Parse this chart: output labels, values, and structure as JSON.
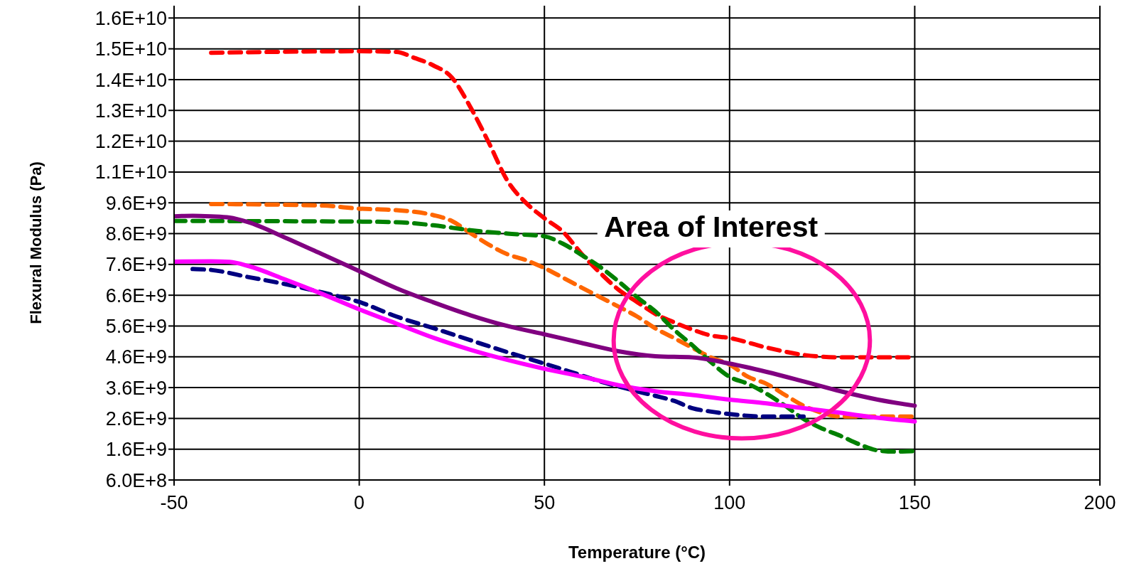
{
  "chart_data": {
    "type": "line",
    "xlabel": "Temperature (°C)",
    "ylabel": "Flexural Modulus (Pa)",
    "annotations": [
      "Area of Interest"
    ],
    "xlim": [
      -50,
      200
    ],
    "xticks": [
      -50,
      0,
      50,
      100,
      150,
      200
    ],
    "ylim": [
      600000000,
      16000000000
    ],
    "yticks": [
      {
        "value": 600000000,
        "label": "6.0E+8"
      },
      {
        "value": 1600000000,
        "label": "1.6E+9"
      },
      {
        "value": 2600000000,
        "label": "2.6E+9"
      },
      {
        "value": 3600000000,
        "label": "3.6E+9"
      },
      {
        "value": 4600000000,
        "label": "4.6E+9"
      },
      {
        "value": 5600000000,
        "label": "5.6E+9"
      },
      {
        "value": 6600000000,
        "label": "6.6E+9"
      },
      {
        "value": 7600000000,
        "label": "7.6E+9"
      },
      {
        "value": 8600000000,
        "label": "8.6E+9"
      },
      {
        "value": 9600000000,
        "label": "9.6E+9"
      },
      {
        "value": 10600000000,
        "label": "1.1E+10"
      },
      {
        "value": 11600000000,
        "label": "1.2E+10"
      },
      {
        "value": 12600000000,
        "label": "1.3E+10"
      },
      {
        "value": 13600000000,
        "label": "1.4E+10"
      },
      {
        "value": 14600000000,
        "label": "1.5E+10"
      },
      {
        "value": 15600000000,
        "label": "1.6E+10"
      }
    ],
    "grid": true,
    "marker": "none",
    "series": [
      {
        "color": "#ff0000",
        "line_style": "dashed",
        "x": [
          -40,
          0,
          10,
          15,
          20,
          25,
          30,
          35,
          40,
          45,
          50,
          55,
          60,
          65,
          70,
          75,
          80,
          85,
          90,
          95,
          100,
          110,
          120,
          130,
          150
        ],
        "values": [
          14470000000,
          14520000000,
          14500000000,
          14300000000,
          14060000000,
          13670000000,
          12710000000,
          11550000000,
          10320000000,
          9600000000,
          9100000000,
          8660000000,
          7950000000,
          7330000000,
          6780000000,
          6380000000,
          5990000000,
          5720000000,
          5480000000,
          5290000000,
          5210000000,
          4900000000,
          4660000000,
          4580000000,
          4580000000
        ]
      },
      {
        "color": "#ff6600",
        "line_style": "dashed",
        "x": [
          -40,
          -30,
          -10,
          0,
          10,
          20,
          25,
          30,
          35,
          40,
          45,
          50,
          55,
          60,
          65,
          70,
          75,
          80,
          85,
          90,
          95,
          100,
          105,
          110,
          115,
          120,
          125,
          130,
          150
        ],
        "values": [
          9560000000,
          9550000000,
          9510000000,
          9410000000,
          9360000000,
          9200000000,
          9010000000,
          8620000000,
          8240000000,
          7930000000,
          7740000000,
          7480000000,
          7170000000,
          6850000000,
          6540000000,
          6230000000,
          5910000000,
          5520000000,
          5210000000,
          4890000000,
          4580000000,
          4350000000,
          3950000000,
          3720000000,
          3360000000,
          3010000000,
          2780000000,
          2660000000,
          2660000000
        ]
      },
      {
        "color": "#008000",
        "line_style": "dashed",
        "x": [
          -50,
          0,
          10,
          20,
          30,
          40,
          50,
          55,
          60,
          65,
          70,
          75,
          80,
          85,
          90,
          95,
          100,
          105,
          110,
          115,
          120,
          125,
          130,
          135,
          140,
          145,
          150
        ],
        "values": [
          9010000000,
          8990000000,
          8970000000,
          8870000000,
          8710000000,
          8600000000,
          8510000000,
          8270000000,
          7910000000,
          7520000000,
          7050000000,
          6540000000,
          6070000000,
          5480000000,
          4970000000,
          4420000000,
          3950000000,
          3720000000,
          3400000000,
          3010000000,
          2580000000,
          2270000000,
          2030000000,
          1760000000,
          1560000000,
          1520000000,
          1540000000
        ]
      },
      {
        "color": "#000080",
        "line_style": "dashed",
        "x": [
          -45,
          -40,
          -30,
          -20,
          -10,
          0,
          10,
          20,
          30,
          40,
          50,
          55,
          60,
          65,
          70,
          75,
          80,
          85,
          90,
          95,
          100,
          110,
          120
        ],
        "values": [
          7450000000,
          7420000000,
          7190000000,
          6960000000,
          6690000000,
          6380000000,
          5910000000,
          5530000000,
          5140000000,
          4750000000,
          4380000000,
          4190000000,
          4000000000,
          3800000000,
          3640000000,
          3480000000,
          3330000000,
          3170000000,
          2930000000,
          2820000000,
          2740000000,
          2660000000,
          2660000000
        ]
      },
      {
        "color": "#800080",
        "line_style": "solid",
        "x": [
          -50,
          -45,
          -40,
          -35,
          -30,
          -20,
          -10,
          0,
          10,
          20,
          30,
          40,
          50,
          60,
          70,
          80,
          90,
          100,
          110,
          120,
          130,
          140,
          150
        ],
        "values": [
          9160000000,
          9180000000,
          9160000000,
          9120000000,
          8970000000,
          8470000000,
          7930000000,
          7380000000,
          6830000000,
          6370000000,
          5950000000,
          5600000000,
          5330000000,
          5050000000,
          4780000000,
          4620000000,
          4580000000,
          4380000000,
          4110000000,
          3800000000,
          3480000000,
          3210000000,
          3010000000
        ]
      },
      {
        "color": "#ff00ff",
        "line_style": "solid",
        "x": [
          -50,
          -40,
          -35,
          -30,
          -20,
          -10,
          0,
          10,
          20,
          30,
          40,
          50,
          60,
          70,
          80,
          90,
          100,
          110,
          120,
          130,
          140,
          150
        ],
        "values": [
          7690000000,
          7700000000,
          7680000000,
          7550000000,
          7110000000,
          6640000000,
          6140000000,
          5680000000,
          5220000000,
          4830000000,
          4500000000,
          4210000000,
          3960000000,
          3680000000,
          3480000000,
          3360000000,
          3210000000,
          3090000000,
          2930000000,
          2780000000,
          2620000000,
          2500000000
        ]
      }
    ]
  }
}
